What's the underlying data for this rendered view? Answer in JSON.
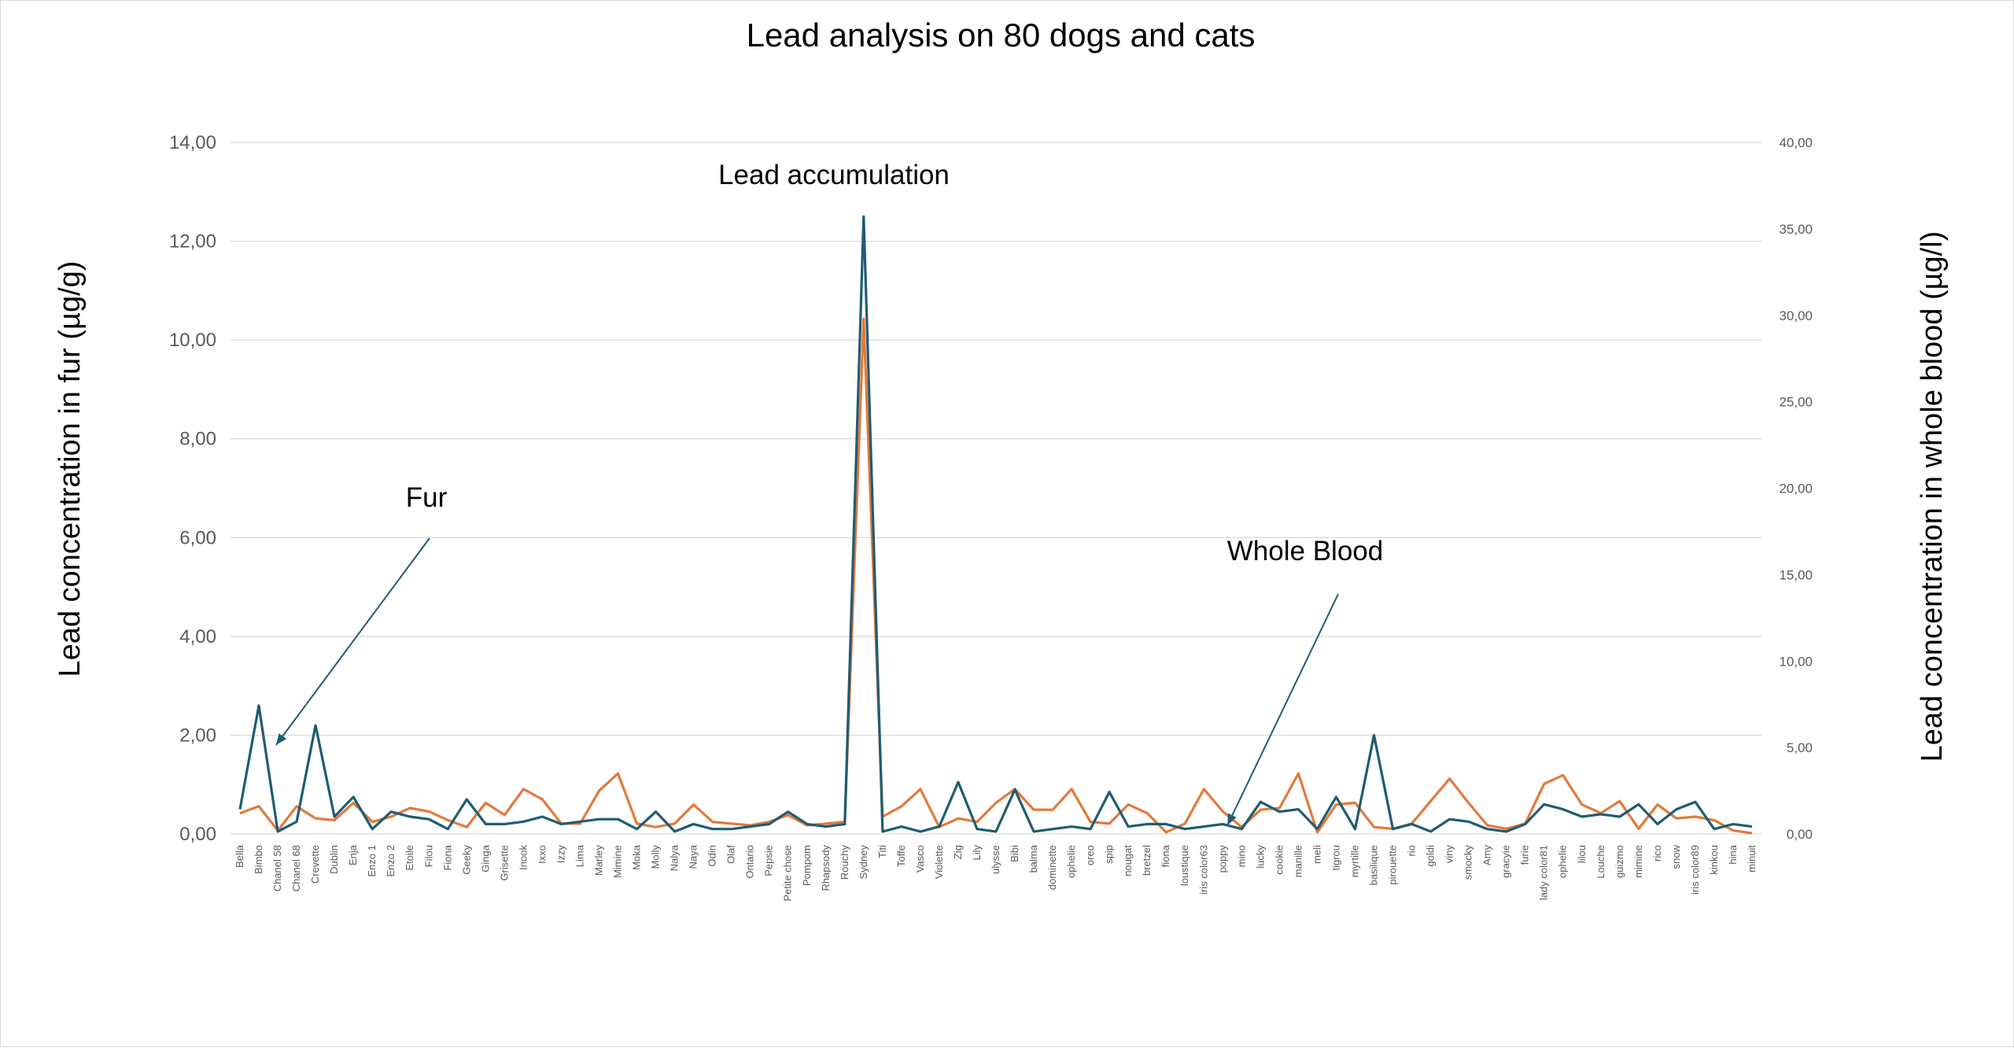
{
  "chart_data": {
    "type": "line",
    "title": "Lead analysis on 80 dogs and cats",
    "ylabel_left": "Lead concentration in fur (µg/g)",
    "ylabel_right": "Lead concentration in whole blood (µg/l)",
    "ylim_left": [
      0,
      14
    ],
    "ylim_right": [
      0,
      40
    ],
    "yticks_left": [
      "0,00",
      "2,00",
      "4,00",
      "6,00",
      "8,00",
      "10,00",
      "12,00",
      "14,00"
    ],
    "yticks_right": [
      "0,00",
      "5,00",
      "10,00",
      "15,00",
      "20,00",
      "25,00",
      "30,00",
      "35,00",
      "40,00"
    ],
    "grid": true,
    "legend": "none",
    "categories": [
      "Bella",
      "Bimbo",
      "Chanel 58",
      "Chanel 68",
      "Crevette",
      "Dublin",
      "Enja",
      "Enzo 1",
      "Enzo 2",
      "Etoile",
      "Filou",
      "Fiona",
      "Geeky",
      "Ginga",
      "Grisette",
      "Inook",
      "Ixxo",
      "Izzy",
      "Lima",
      "Marley",
      "Mimine",
      "Moka",
      "Molly",
      "Nalya",
      "Naya",
      "Odin",
      "Olaf",
      "Ontario",
      "Pepsie",
      "Petite chose",
      "Pompom",
      "Rhapsody",
      "Rouchy",
      "Sydney",
      "Titi",
      "Toffe",
      "Vasco",
      "Violette",
      "Zig",
      "Lily",
      "ulysse",
      "Bibi",
      "balma",
      "dominette",
      "ophelie",
      "oreo",
      "spip",
      "nougat",
      "bretzel",
      "fiona",
      "loustique",
      "iris color63",
      "poppy",
      "mino",
      "lucky",
      "cookie",
      "manille",
      "meli",
      "tigrou",
      "myrtille",
      "basilique",
      "pirouette",
      "rio",
      "goldi",
      "viny",
      "smocky",
      "Amy",
      "gracyie",
      "furie",
      "lady color81",
      "ophelie",
      "lilou",
      "Louche",
      "guizmo",
      "mimine",
      "rico",
      "snow",
      "iris color89",
      "kinkou",
      "hina",
      "minuit"
    ],
    "series": [
      {
        "name": "Fur",
        "axis": "left",
        "color": "#1f5c73",
        "values": [
          0.5,
          2.6,
          0.05,
          0.25,
          2.2,
          0.35,
          0.75,
          0.1,
          0.45,
          0.35,
          0.3,
          0.1,
          0.7,
          0.2,
          0.2,
          0.25,
          0.35,
          0.2,
          0.25,
          0.3,
          0.3,
          0.1,
          0.45,
          0.05,
          0.2,
          0.1,
          0.1,
          0.15,
          0.2,
          0.45,
          0.2,
          0.15,
          0.2,
          12.5,
          0.05,
          0.15,
          0.05,
          0.15,
          1.05,
          0.1,
          0.05,
          0.9,
          0.05,
          0.1,
          0.15,
          0.1,
          0.85,
          0.15,
          0.2,
          0.2,
          0.1,
          0.15,
          0.2,
          0.1,
          0.65,
          0.45,
          0.5,
          0.1,
          0.75,
          0.1,
          2.0,
          0.1,
          0.2,
          0.05,
          0.3,
          0.25,
          0.1,
          0.05,
          0.2,
          0.6,
          0.5,
          0.35,
          0.4,
          0.35,
          0.6,
          0.2,
          0.5,
          0.65,
          0.1,
          0.2,
          0.15
        ]
      },
      {
        "name": "Whole Blood",
        "axis": "right",
        "color": "#e3793a",
        "values": [
          1.2,
          1.6,
          0.2,
          1.6,
          0.9,
          0.8,
          1.8,
          0.7,
          1.0,
          1.5,
          1.3,
          0.8,
          0.4,
          1.8,
          1.1,
          2.6,
          2.0,
          0.6,
          0.6,
          2.5,
          3.5,
          0.6,
          0.4,
          0.6,
          1.7,
          0.7,
          0.6,
          0.5,
          0.7,
          1.1,
          0.5,
          0.6,
          0.7,
          29.8,
          1.0,
          1.6,
          2.6,
          0.4,
          0.9,
          0.7,
          1.8,
          2.6,
          1.4,
          1.4,
          2.6,
          0.7,
          0.6,
          1.7,
          1.2,
          0.1,
          0.6,
          2.6,
          1.3,
          0.4,
          1.4,
          1.5,
          3.5,
          0.1,
          1.7,
          1.8,
          0.4,
          0.3,
          0.6,
          1.9,
          3.2,
          1.8,
          0.5,
          0.3,
          0.6,
          2.9,
          3.4,
          1.7,
          1.2,
          1.9,
          0.3,
          1.7,
          0.9,
          1.0,
          0.8,
          0.2,
          0.05
        ]
      }
    ],
    "annotations": [
      {
        "text": "Fur",
        "target_series": "Fur",
        "target_index": 1
      },
      {
        "text": "Whole Blood",
        "target_series": "Whole Blood",
        "target_index": 51
      },
      {
        "text": "Lead accumulation",
        "target_series": "Fur",
        "target_index": 33
      }
    ]
  }
}
